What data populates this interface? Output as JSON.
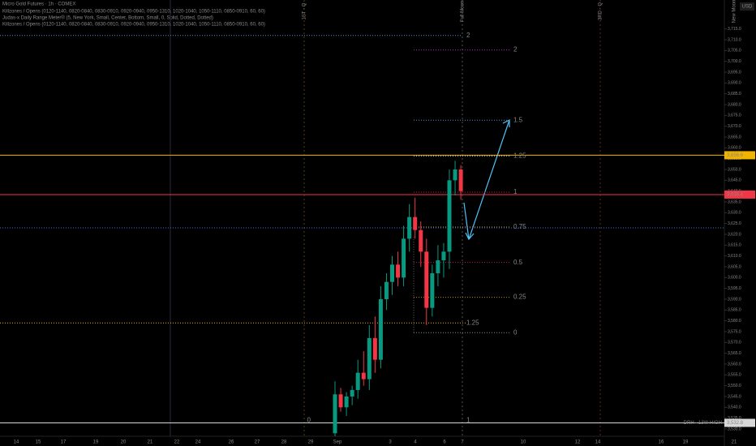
{
  "header": {
    "title": "Micro Gold Futures · 1h · COMEX",
    "lines": [
      "Killzones / Opens (0120-1140, 0820-0840, 0830-0910, 0920-0940, 0950-1310, 1020-1040, 1050-1110, 0850-0910, 60, 60)",
      "Judas-x Daily Range Meter® (5, New York, Small, Center, Bottom, Small, 0, Solid, Dotted, Dotted)",
      "Killzones / Opens (0120-1140, 0820-0840, 0830-0910, 0920-0940, 0950-1310, 1020-1040, 1050-1110, 0850-0910, 60, 60)"
    ]
  },
  "chart_data": {
    "type": "candlestick",
    "currency": "USD",
    "open": [
      3528,
      3546,
      3540,
      3545,
      3548,
      3556,
      3553,
      3572,
      3562,
      3590,
      3598,
      3606,
      3600,
      3618,
      3628,
      3622,
      3612,
      3586,
      3602,
      3608,
      3612,
      3645,
      3650
    ],
    "high": [
      3552,
      3549,
      3547,
      3550,
      3562,
      3566,
      3578,
      3582,
      3596,
      3602,
      3610,
      3612,
      3624,
      3634,
      3637,
      3626,
      3618,
      3606,
      3615,
      3616,
      3650,
      3654,
      3652
    ],
    "low": [
      3524,
      3538,
      3536,
      3541,
      3544,
      3550,
      3548,
      3556,
      3558,
      3585,
      3592,
      3596,
      3596,
      3612,
      3618,
      3605,
      3578,
      3582,
      3596,
      3600,
      3604,
      3638,
      3636
    ],
    "close": [
      3546,
      3540,
      3545,
      3548,
      3556,
      3553,
      3572,
      3562,
      3590,
      3598,
      3606,
      3600,
      3618,
      3628,
      3622,
      3612,
      3586,
      3602,
      3608,
      3612,
      3645,
      3650,
      3640
    ],
    "up_color": "#089981",
    "down_color": "#f23645",
    "x_labels": [
      "14",
      "15",
      "17",
      "19",
      "20",
      "21",
      "22",
      "24",
      "26",
      "27",
      "28",
      "29",
      "Sep",
      "3",
      "4",
      "6",
      "7",
      "10",
      "12",
      "14",
      "16",
      "19",
      "21"
    ],
    "ylim": [
      3526.6,
      3728.4
    ],
    "yticks": [
      {
        "value": 3530,
        "label": "3,530.0"
      },
      {
        "value": 3535,
        "label": "3,535.0"
      },
      {
        "value": 3540,
        "label": "3,540.0"
      },
      {
        "value": 3545,
        "label": "3,545.0"
      },
      {
        "value": 3550,
        "label": "3,550.0"
      },
      {
        "value": 3555,
        "label": "3,555.0"
      },
      {
        "value": 3560,
        "label": "3,560.0"
      },
      {
        "value": 3565,
        "label": "3,565.0"
      },
      {
        "value": 3570,
        "label": "3,570.0"
      },
      {
        "value": 3575,
        "label": "3,575.0"
      },
      {
        "value": 3580,
        "label": "3,580.0"
      },
      {
        "value": 3585,
        "label": "3,585.0"
      },
      {
        "value": 3590,
        "label": "3,590.0"
      },
      {
        "value": 3595,
        "label": "3,595.0"
      },
      {
        "value": 3600,
        "label": "3,600.0"
      },
      {
        "value": 3605,
        "label": "3,605.0"
      },
      {
        "value": 3610,
        "label": "3,610.0"
      },
      {
        "value": 3615,
        "label": "3,615.0"
      },
      {
        "value": 3620,
        "label": "3,620.0"
      },
      {
        "value": 3625,
        "label": "3,625.0"
      },
      {
        "value": 3630,
        "label": "3,630.0"
      },
      {
        "value": 3635,
        "label": "3,635.0"
      },
      {
        "value": 3640,
        "label": "3,640.0"
      },
      {
        "value": 3645,
        "label": "3,645.0"
      },
      {
        "value": 3650,
        "label": "3,650.0"
      },
      {
        "value": 3655,
        "label": "3,655.0"
      },
      {
        "value": 3660,
        "label": "3,660.0"
      },
      {
        "value": 3665,
        "label": "3,665.0"
      },
      {
        "value": 3670,
        "label": "3,670.0"
      },
      {
        "value": 3675,
        "label": "3,675.0"
      },
      {
        "value": 3680,
        "label": "3,680.0"
      },
      {
        "value": 3685,
        "label": "3,685.0"
      },
      {
        "value": 3690,
        "label": "3,690.0"
      },
      {
        "value": 3695,
        "label": "3,695.0"
      },
      {
        "value": 3700,
        "label": "3,700.0"
      },
      {
        "value": 3705,
        "label": "3,705.0"
      },
      {
        "value": 3710,
        "label": "3,710.0"
      },
      {
        "value": 3715,
        "label": "3,715.0"
      }
    ],
    "price_labels": [
      {
        "value": 3656.6,
        "label": "3,656.6",
        "color": "#f0b400"
      },
      {
        "value": 3638.4,
        "label": "3,638.4",
        "color": "#f23645"
      },
      {
        "value": 3532.8,
        "label": "3,532.8",
        "color": "#d8d8d8",
        "note": "DRH - 13W HIGH"
      }
    ],
    "levels": [
      {
        "label": "2",
        "value": 3705.3,
        "color": "#9c27b0"
      },
      {
        "label": "1.5",
        "value": 3672.8,
        "color": "#4f8fd6"
      },
      {
        "label": "1.25",
        "value": 3656.3,
        "color": "#d8d8d8"
      },
      {
        "label": "1",
        "value": 3639.5,
        "color": "#c2185b"
      },
      {
        "label": "0.75",
        "value": 3623.4,
        "color": "#b38a1e"
      },
      {
        "label": "0.5",
        "value": 3607,
        "color": "#c2185b"
      },
      {
        "label": "0.25",
        "value": 3590.9,
        "color": "#b38a1e"
      },
      {
        "label": "0",
        "value": 3574.5,
        "color": "#888888"
      }
    ],
    "levels2": [
      {
        "label": "2",
        "value": 3712,
        "color": "#4f8fd6"
      },
      {
        "label": "1.25",
        "value": 3579,
        "color": "#f0b400"
      },
      {
        "label": "0",
        "value": 3534,
        "color": "#888888"
      },
      {
        "label": "1",
        "value": 3534,
        "color": "#888888"
      }
    ],
    "events": [
      "1ST - Q",
      "Full Moon",
      "3RD - Q",
      "New Moon"
    ]
  }
}
